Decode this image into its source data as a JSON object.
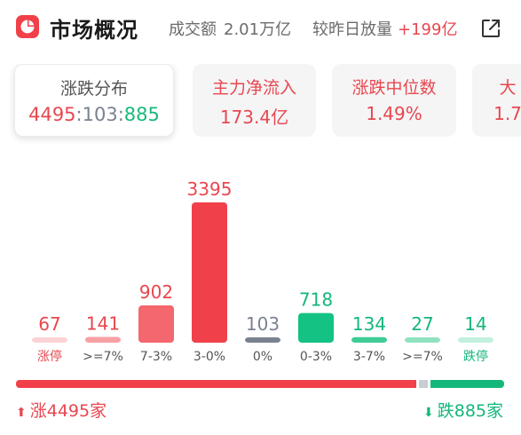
{
  "header": {
    "title": "市场概况",
    "turnover_label": "成交额",
    "turnover_value": "2.01万亿",
    "volume_change_label": "较昨日放量",
    "volume_change_value": "+199亿",
    "icon": "share-icon"
  },
  "cards": [
    {
      "label": "涨跌分布",
      "up": "4495",
      "sep1": ":",
      "flat": "103",
      "sep2": ":",
      "down": "885",
      "active": true
    },
    {
      "label": "主力净流入",
      "value": "173.4亿"
    },
    {
      "label": "涨跌中位数",
      "value": "1.49%"
    },
    {
      "label": "大",
      "value": "1.7"
    }
  ],
  "chart_data": {
    "type": "bar",
    "categories": [
      "涨停",
      ">=7%",
      "7-3%",
      "3-0%",
      "0%",
      "0-3%",
      "3-7%",
      ">=7%",
      "跌停"
    ],
    "values": [
      67,
      141,
      902,
      3395,
      103,
      718,
      134,
      27,
      14
    ],
    "colors": [
      "#fbd3d5",
      "#f7a1a5",
      "#f4676e",
      "#f0414a",
      "#7a8290",
      "#14c283",
      "#3fcc95",
      "#8fe2bf",
      "#c2f0dc"
    ],
    "label_colors": [
      "#e8474f",
      "#e8474f",
      "#e8474f",
      "#e8474f",
      "#7a8290",
      "#14b77a",
      "#14b77a",
      "#14b77a",
      "#14b77a"
    ]
  },
  "breadth": {
    "up_count": 4495,
    "flat_count": 103,
    "down_count": 885
  },
  "footer": {
    "up_label": "涨4495家",
    "down_label": "跌885家",
    "up_arrow": "⬆",
    "down_arrow": "⬇"
  },
  "colors": {
    "up": "#e8474f",
    "down": "#14b77a",
    "flat": "#7a8290"
  }
}
